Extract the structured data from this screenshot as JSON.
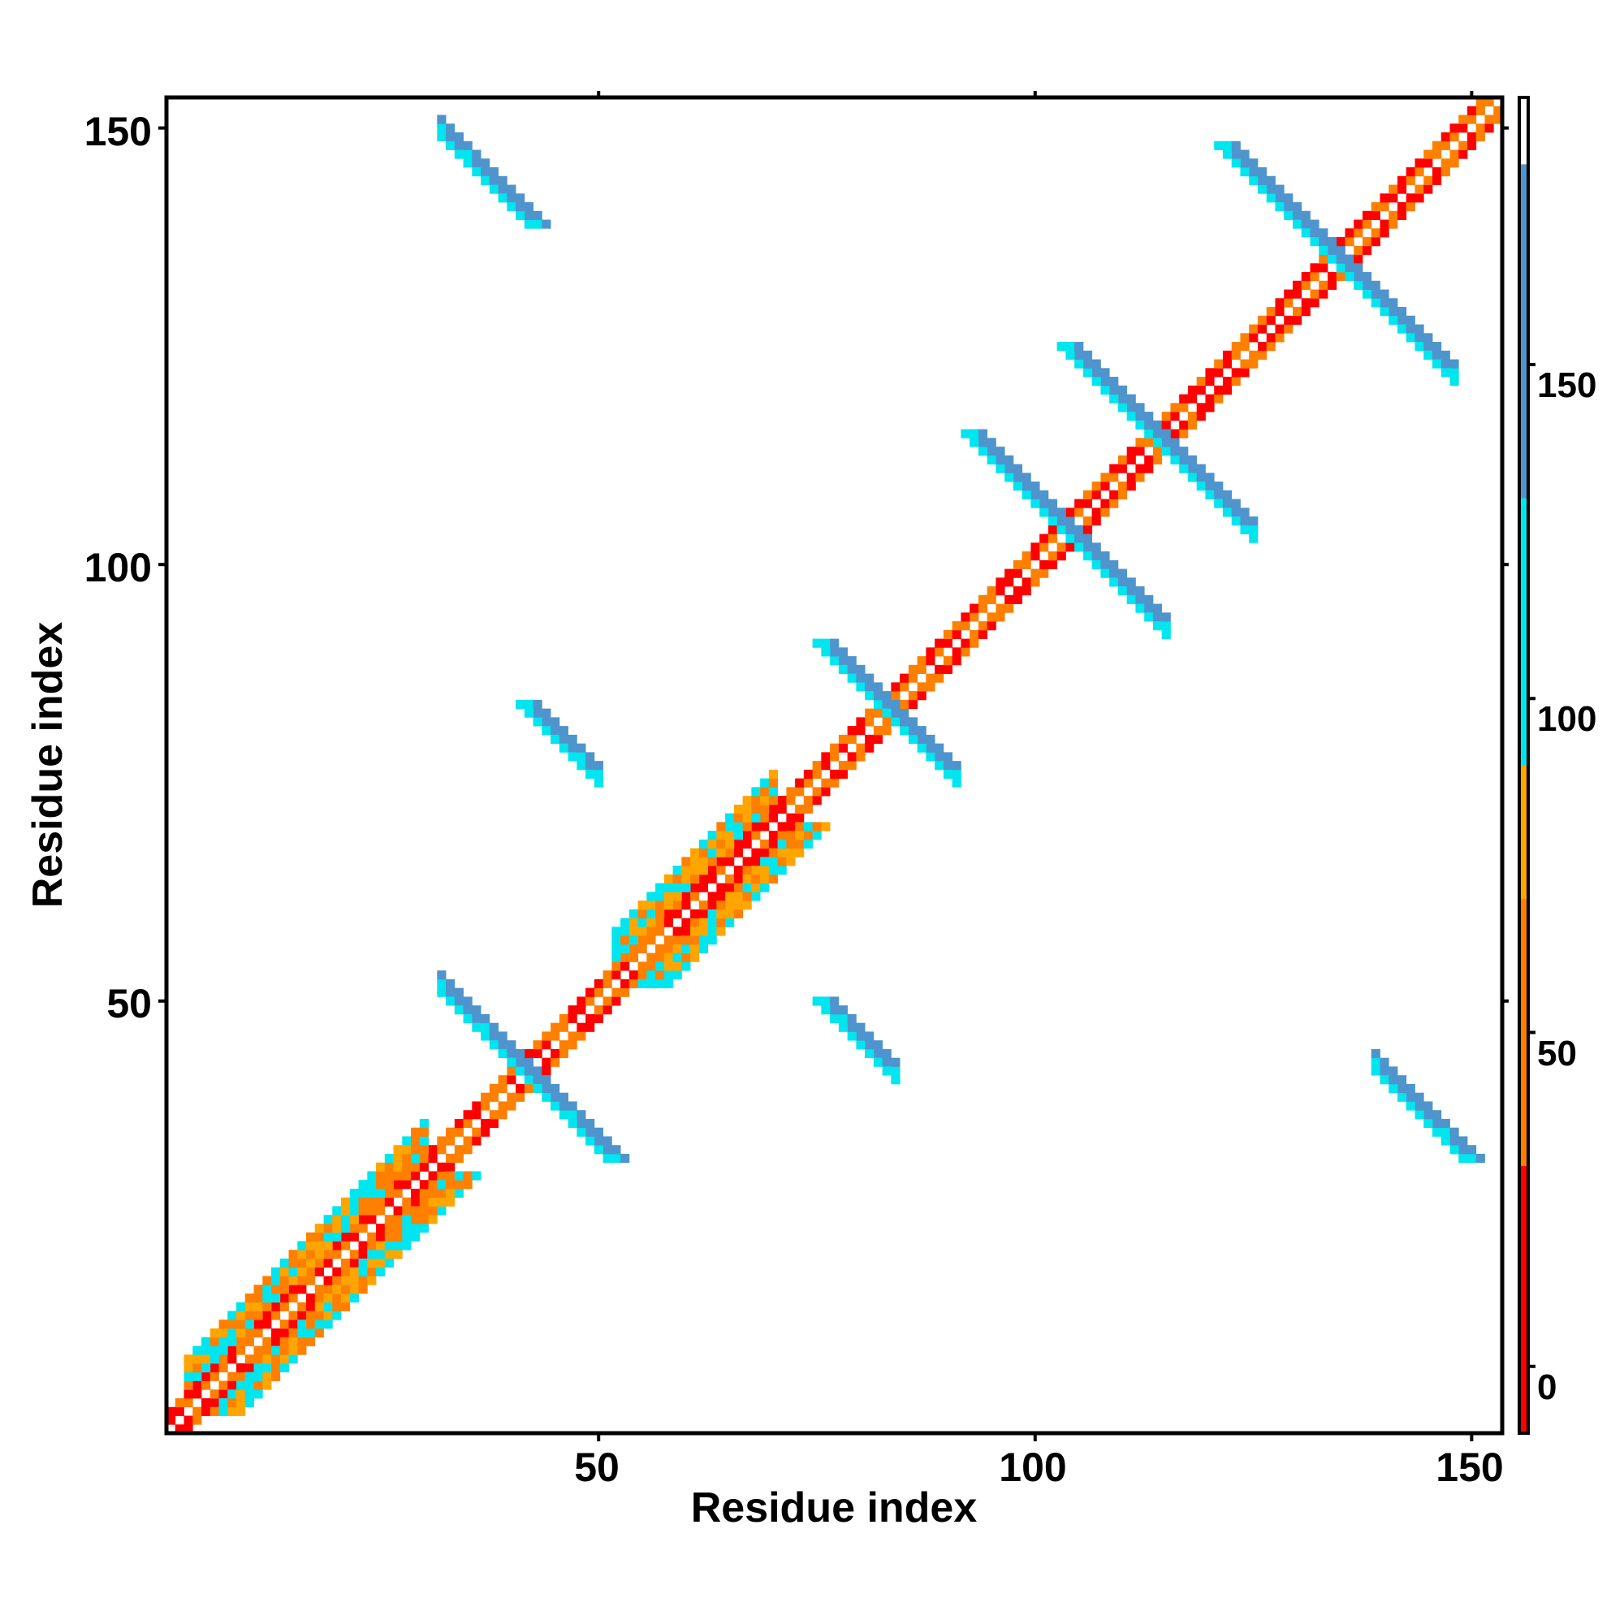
{
  "chart_data": {
    "type": "heatmap",
    "xlabel": "Residue index",
    "ylabel": "Residue index",
    "xlim": [
      1,
      153
    ],
    "ylim": [
      1,
      153
    ],
    "x_ticks": [
      "50",
      "100",
      "150"
    ],
    "y_ticks": [
      "50",
      "100",
      "150"
    ],
    "colorbar": {
      "range": [
        -10,
        190
      ],
      "ticks": [
        "0",
        "50",
        "100",
        "150"
      ],
      "bins": [
        {
          "from": -10,
          "to": 30,
          "color": "#ff0000"
        },
        {
          "from": 30,
          "to": 70,
          "color": "#ff7f00"
        },
        {
          "from": 70,
          "to": 90,
          "color": "#ffa500"
        },
        {
          "from": 90,
          "to": 130,
          "color": "#00e5ee"
        },
        {
          "from": 130,
          "to": 180,
          "color": "#4f94cd"
        },
        {
          "from": 180,
          "to": 190,
          "color": "#ffffff"
        }
      ]
    },
    "features": [
      {
        "kind": "diagonal",
        "from": 1,
        "to": 153,
        "width": 2
      },
      {
        "kind": "parallel",
        "from": 3,
        "to": 30,
        "width": 3
      },
      {
        "kind": "parallel",
        "from": 52,
        "to": 70,
        "width": 3
      },
      {
        "kind": "antiparallel",
        "x_range": [
          32,
          47
        ],
        "sum": 84
      },
      {
        "kind": "antiparallel",
        "x_range": [
          78,
          91
        ],
        "sum": 167
      },
      {
        "kind": "antiparallel",
        "x_range": [
          102,
          115
        ],
        "sum": 208
      },
      {
        "kind": "antiparallel",
        "x_range": [
          111,
          125
        ],
        "sum": 229
      },
      {
        "kind": "antiparallel",
        "x_range": [
          128,
          148
        ],
        "sum": 270
      },
      {
        "kind": "antiparallel",
        "x_range": [
          32,
          40
        ],
        "sum": 182
      },
      {
        "kind": "antiparallel",
        "x_range": [
          139,
          147
        ],
        "sum": 182
      },
      {
        "kind": "antiparallel",
        "x_range": [
          44,
          50
        ],
        "sum": 126
      },
      {
        "kind": "antiparallel",
        "x_range": [
          78,
          84
        ],
        "sum": 126
      }
    ]
  }
}
